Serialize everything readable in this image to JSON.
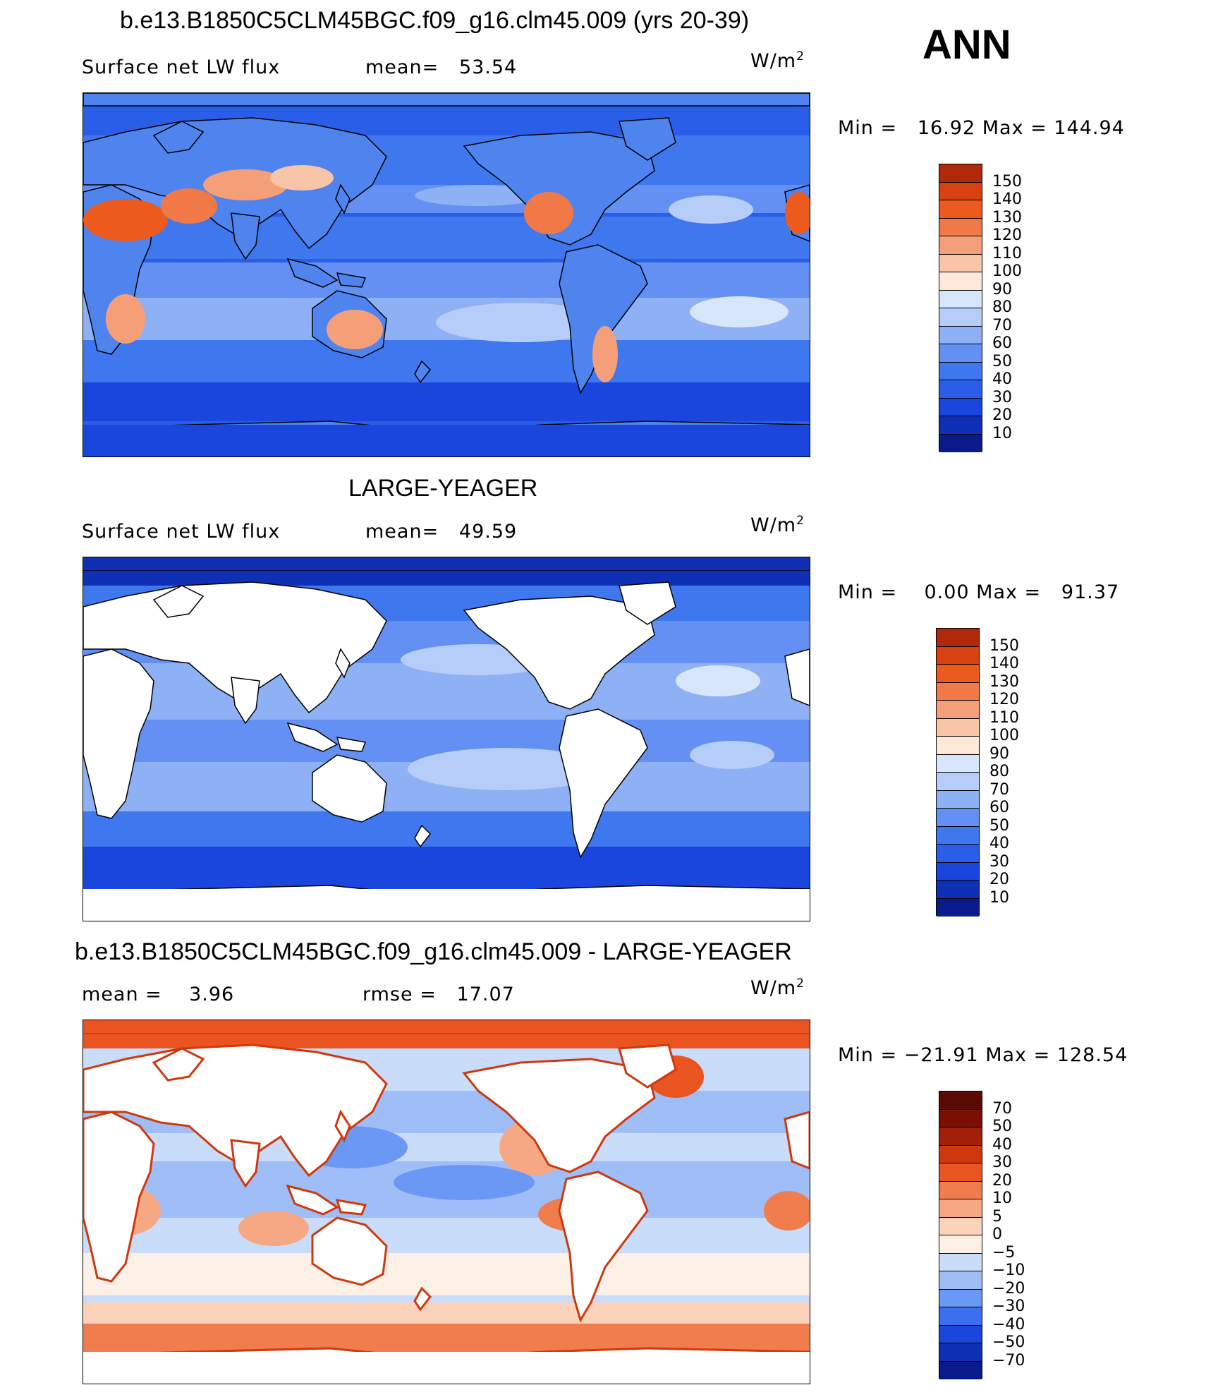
{
  "header": {
    "ann_label": "ANN"
  },
  "colors": {
    "levels_abs": [
      "#0a1a8a",
      "#0f2fb4",
      "#1a46dd",
      "#2a5ee8",
      "#3f77ef",
      "#6390f2",
      "#8eb0f5",
      "#b5cdf8",
      "#d8e6fb",
      "#fde8da",
      "#f9c5a9",
      "#f59f78",
      "#f17948",
      "#ec5a1e",
      "#d8400f",
      "#b0290a",
      "#821405"
    ],
    "levels_diff": [
      "#0a1a8a",
      "#0f2fb4",
      "#1a46dd",
      "#3a6fef",
      "#6a98f4",
      "#9fbef7",
      "#c9dcfa",
      "#fdf0e6",
      "#fbd3bb",
      "#f6a885",
      "#f17d4f",
      "#ea5420",
      "#cf380c",
      "#a21f08",
      "#7a1004"
    ]
  },
  "panels": [
    {
      "title": "b.e13.B1850C5CLM45BGC.f09_g16.clm45.009 (yrs 20-39)",
      "left_label": "Surface net LW flux",
      "mid_label": "mean=   53.54",
      "units": "W/m",
      "units_sup": "2",
      "minmax": "Min =   16.92 Max = 144.94",
      "colorbar_ticks": [
        "150",
        "140",
        "130",
        "120",
        "110",
        "100",
        "90",
        "80",
        "70",
        "60",
        "50",
        "40",
        "30",
        "20",
        "10"
      ]
    },
    {
      "title": "LARGE-YEAGER",
      "left_label": "Surface net LW flux",
      "mid_label": "mean=   49.59",
      "units": "W/m",
      "units_sup": "2",
      "minmax": "Min =    0.00 Max =   91.37",
      "colorbar_ticks": [
        "150",
        "140",
        "130",
        "120",
        "110",
        "100",
        "90",
        "80",
        "70",
        "60",
        "50",
        "40",
        "30",
        "20",
        "10"
      ]
    },
    {
      "title": "b.e13.B1850C5CLM45BGC.f09_g16.clm45.009 - LARGE-YEAGER",
      "left_label": "mean =    3.96",
      "mid_label": "rmse =   17.07",
      "units": "W/m",
      "units_sup": "2",
      "minmax": "Min = −21.91 Max = 128.54",
      "colorbar_ticks": [
        "70",
        "50",
        "40",
        "30",
        "20",
        "10",
        "5",
        "0",
        "−5",
        "−10",
        "−20",
        "−30",
        "−40",
        "−50",
        "−70"
      ]
    }
  ]
}
